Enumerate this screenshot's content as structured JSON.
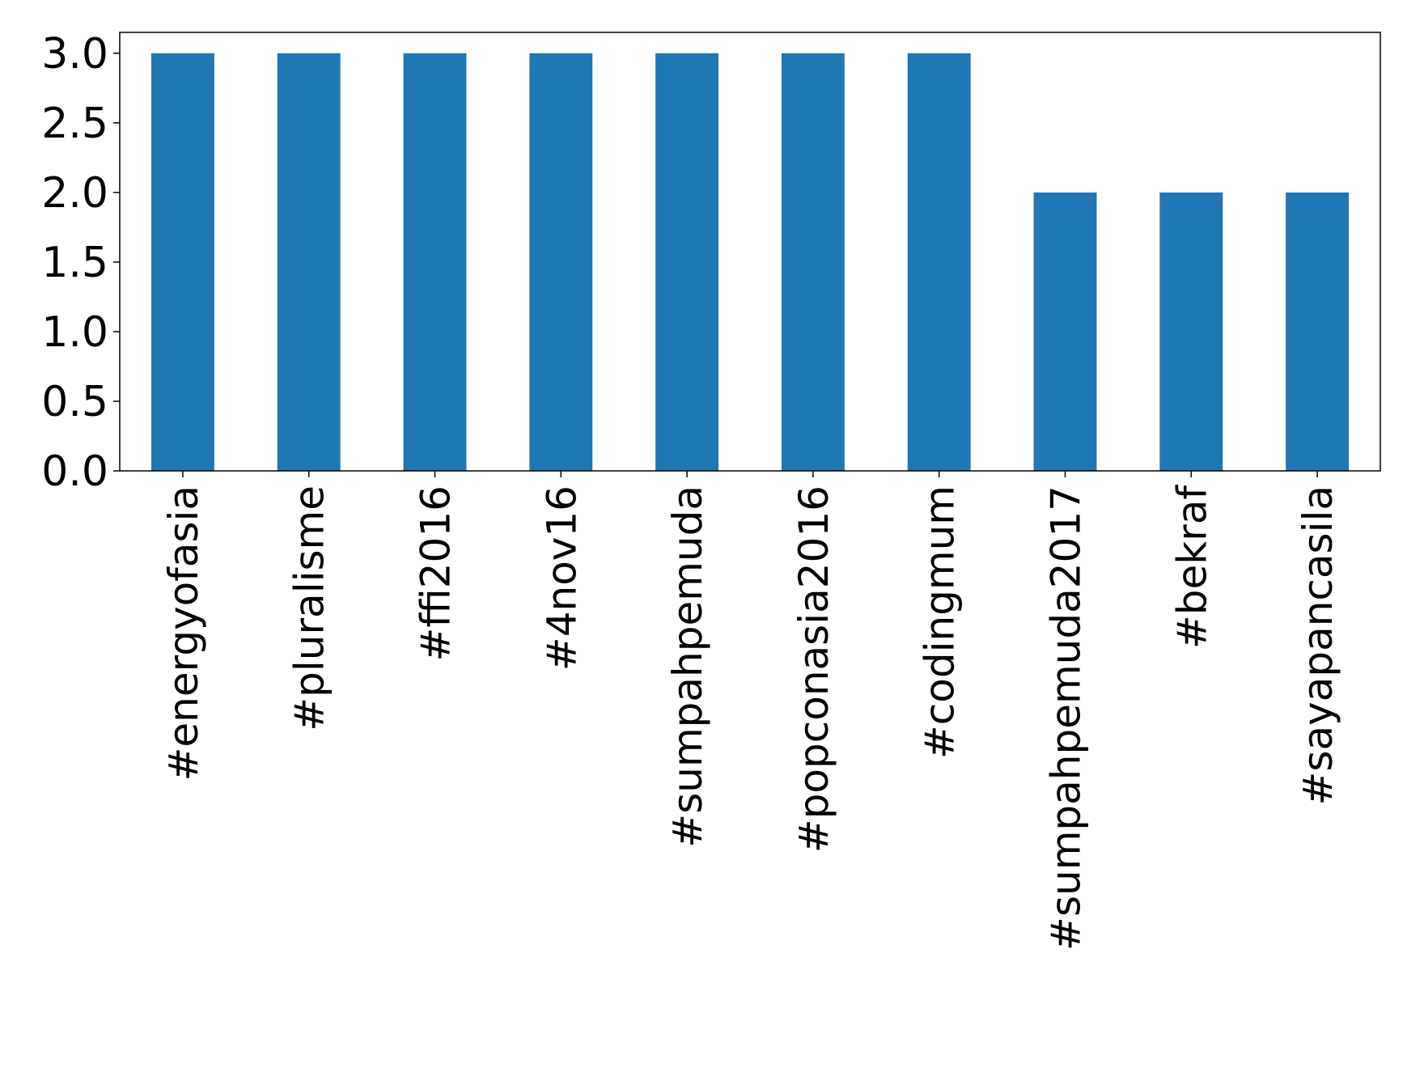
{
  "chart_data": {
    "type": "bar",
    "title": "",
    "xlabel": "",
    "ylabel": "",
    "categories": [
      "#energyofasia",
      "#pluralisme",
      "#ffi2016",
      "#4nov16",
      "#sumpahpemuda",
      "#popconasia2016",
      "#codingmum",
      "#sumpahpemuda2017",
      "#bekraf",
      "#sayapancasila"
    ],
    "values": [
      3,
      3,
      3,
      3,
      3,
      3,
      3,
      2,
      2,
      2
    ],
    "ylim": [
      0,
      3.15
    ],
    "yticks": [
      "0.0",
      "0.5",
      "1.0",
      "1.5",
      "2.0",
      "2.5",
      "3.0"
    ],
    "bar_color": "#1f77b4",
    "grid": false,
    "legend": "none"
  }
}
